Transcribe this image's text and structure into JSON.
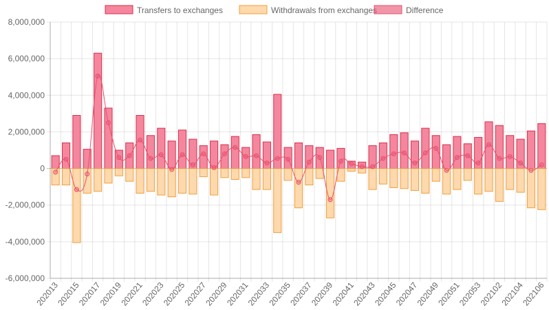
{
  "chart_data": {
    "type": "bar",
    "title": "",
    "xlabel": "",
    "ylabel": "",
    "ylim": [
      -6000000,
      8000000
    ],
    "y_ticks": [
      "8,000,000",
      "6,000,000",
      "4,000,000",
      "2,000,000",
      "0",
      "-2,000,000",
      "-4,000,000",
      "-6,000,000"
    ],
    "y_tick_values": [
      8000000,
      6000000,
      4000000,
      2000000,
      0,
      -2000000,
      -4000000,
      -6000000
    ],
    "grid": true,
    "legend_position": "top",
    "categories": [
      "202013",
      "202014",
      "202015",
      "202016",
      "202017",
      "202018",
      "202019",
      "202020",
      "202021",
      "202022",
      "202023",
      "202024",
      "202025",
      "202026",
      "202027",
      "202028",
      "202029",
      "202030",
      "202031",
      "202032",
      "202033",
      "202034",
      "202035",
      "202036",
      "202037",
      "202038",
      "202039",
      "202040",
      "202041",
      "202042",
      "202043",
      "202044",
      "202045",
      "202046",
      "202047",
      "202048",
      "202049",
      "202050",
      "202051",
      "202052",
      "202053",
      "202101",
      "202102",
      "202103",
      "202104",
      "202105",
      "202106"
    ],
    "x_tick_labels": [
      "202013",
      "202015",
      "202017",
      "202019",
      "202021",
      "202023",
      "202025",
      "202027",
      "202029",
      "202031",
      "202033",
      "202035",
      "202037",
      "202039",
      "202041",
      "202043",
      "202045",
      "202047",
      "202049",
      "202051",
      "202053",
      "202102",
      "202104",
      "202106"
    ],
    "series": [
      {
        "name": "Transfers to exchanges",
        "kind": "bar",
        "color": "#f4879d",
        "border": "#d6304f",
        "values": [
          700000,
          1400000,
          2900000,
          1050000,
          6300000,
          3300000,
          1000000,
          1400000,
          2900000,
          1800000,
          2200000,
          1500000,
          2100000,
          1600000,
          1250000,
          1500000,
          1300000,
          1750000,
          1150000,
          1850000,
          1450000,
          4050000,
          1150000,
          1400000,
          1250000,
          1150000,
          1000000,
          1100000,
          400000,
          350000,
          1250000,
          1400000,
          1850000,
          1950000,
          1500000,
          2200000,
          1800000,
          1300000,
          1750000,
          1350000,
          1700000,
          2550000,
          2350000,
          1800000,
          1600000,
          2050000,
          2450000
        ]
      },
      {
        "name": "Withdrawals from exchanges",
        "kind": "bar",
        "color": "#fdd9ad",
        "border": "#f0a03c",
        "values": [
          -900000,
          -900000,
          -4050000,
          -1350000,
          -1250000,
          -800000,
          -400000,
          -700000,
          -1350000,
          -1250000,
          -1450000,
          -1550000,
          -1350000,
          -1400000,
          -450000,
          -1450000,
          -500000,
          -600000,
          -500000,
          -1150000,
          -1150000,
          -3500000,
          -650000,
          -2150000,
          -900000,
          -550000,
          -2700000,
          -700000,
          -150000,
          -250000,
          -1150000,
          -850000,
          -1050000,
          -1100000,
          -1200000,
          -1350000,
          -700000,
          -1400000,
          -1150000,
          -650000,
          -1400000,
          -1250000,
          -1800000,
          -1150000,
          -1300000,
          -2150000,
          -2250000
        ]
      },
      {
        "name": "Difference",
        "kind": "line",
        "color": "#e8506f",
        "values": [
          -200000,
          500000,
          -1150000,
          -300000,
          5050000,
          2500000,
          600000,
          700000,
          1550000,
          550000,
          750000,
          -50000,
          750000,
          200000,
          800000,
          50000,
          800000,
          1150000,
          650000,
          700000,
          300000,
          550000,
          500000,
          -750000,
          350000,
          600000,
          -1700000,
          400000,
          250000,
          100000,
          100000,
          550000,
          800000,
          850000,
          300000,
          850000,
          1100000,
          -100000,
          600000,
          700000,
          300000,
          1300000,
          550000,
          650000,
          300000,
          -100000,
          200000
        ]
      }
    ]
  }
}
